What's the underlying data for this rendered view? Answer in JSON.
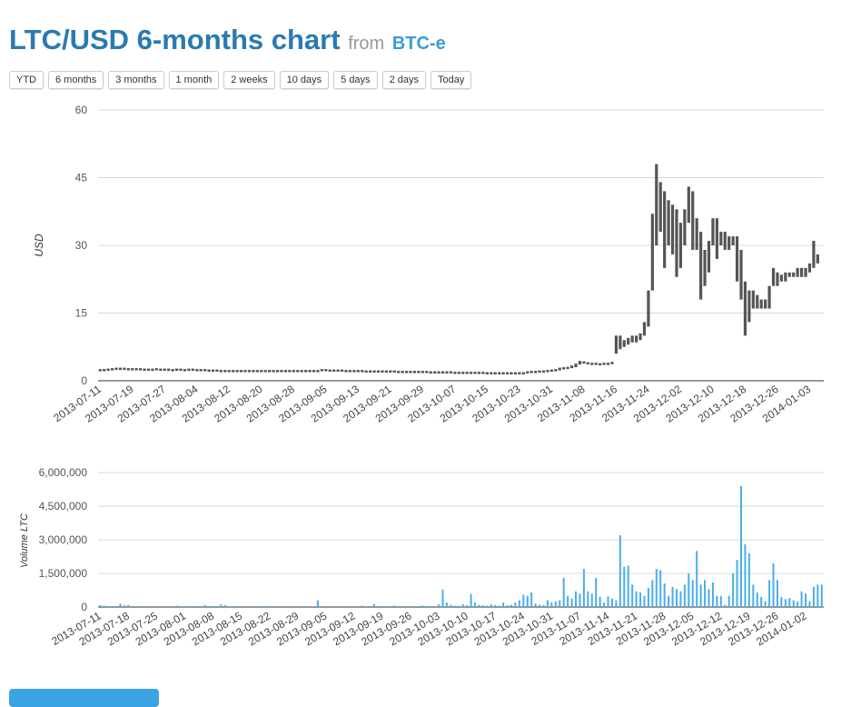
{
  "header": {
    "title": "LTC/USD 6-months chart",
    "from": "from",
    "source": "BTC-e"
  },
  "range_buttons": [
    "YTD",
    "6 months",
    "3 months",
    "1 month",
    "2 weeks",
    "10 days",
    "5 days",
    "2 days",
    "Today"
  ],
  "chart_data": [
    {
      "type": "candlestick",
      "title": "LTC/USD",
      "ylabel": "USD",
      "ylim": [
        0,
        60
      ],
      "yticks": [
        "0",
        "15",
        "30",
        "45",
        "60"
      ],
      "ytick_values": [
        0,
        15,
        30,
        45,
        60
      ],
      "start_date": "2013-07-11",
      "days": 180,
      "xtick_labels": [
        "2013-07-11",
        "2013-07-19",
        "2013-07-27",
        "2013-08-04",
        "2013-08-12",
        "2013-08-20",
        "2013-08-28",
        "2013-09-05",
        "2013-09-13",
        "2013-09-21",
        "2013-09-29",
        "2013-10-07",
        "2013-10-15",
        "2013-10-23",
        "2013-10-31",
        "2013-11-08",
        "2013-11-16",
        "2013-11-24",
        "2013-12-02",
        "2013-12-10",
        "2013-12-18",
        "2013-12-26",
        "2014-01-03"
      ],
      "xtick_step_days": 8,
      "low_high": [
        [
          2.2,
          2.6
        ],
        [
          2.3,
          2.6
        ],
        [
          2.3,
          2.7
        ],
        [
          2.4,
          2.8
        ],
        [
          2.4,
          2.9
        ],
        [
          2.5,
          2.9
        ],
        [
          2.5,
          2.9
        ],
        [
          2.4,
          2.8
        ],
        [
          2.4,
          2.8
        ],
        [
          2.5,
          2.8
        ],
        [
          2.4,
          2.8
        ],
        [
          2.4,
          2.7
        ],
        [
          2.4,
          2.7
        ],
        [
          2.4,
          2.7
        ],
        [
          2.4,
          2.8
        ],
        [
          2.4,
          2.7
        ],
        [
          2.4,
          2.7
        ],
        [
          2.3,
          2.7
        ],
        [
          2.3,
          2.6
        ],
        [
          2.3,
          2.7
        ],
        [
          2.3,
          2.7
        ],
        [
          2.3,
          2.6
        ],
        [
          2.3,
          2.7
        ],
        [
          2.4,
          2.7
        ],
        [
          2.3,
          2.6
        ],
        [
          2.3,
          2.6
        ],
        [
          2.2,
          2.6
        ],
        [
          2.2,
          2.5
        ],
        [
          2.2,
          2.5
        ],
        [
          2.2,
          2.5
        ],
        [
          2.1,
          2.4
        ],
        [
          2.1,
          2.4
        ],
        [
          2.1,
          2.4
        ],
        [
          2.1,
          2.4
        ],
        [
          2.1,
          2.4
        ],
        [
          2.1,
          2.4
        ],
        [
          2.1,
          2.4
        ],
        [
          2.1,
          2.4
        ],
        [
          2.1,
          2.4
        ],
        [
          2.1,
          2.4
        ],
        [
          2.1,
          2.4
        ],
        [
          2.1,
          2.4
        ],
        [
          2.1,
          2.4
        ],
        [
          2.1,
          2.4
        ],
        [
          2.1,
          2.4
        ],
        [
          2.1,
          2.4
        ],
        [
          2.1,
          2.4
        ],
        [
          2.1,
          2.4
        ],
        [
          2.1,
          2.4
        ],
        [
          2.1,
          2.4
        ],
        [
          2.1,
          2.4
        ],
        [
          2.1,
          2.4
        ],
        [
          2.1,
          2.4
        ],
        [
          2.1,
          2.4
        ],
        [
          2.1,
          2.4
        ],
        [
          2.2,
          2.6
        ],
        [
          2.2,
          2.6
        ],
        [
          2.2,
          2.5
        ],
        [
          2.2,
          2.5
        ],
        [
          2.2,
          2.5
        ],
        [
          2.1,
          2.5
        ],
        [
          2.1,
          2.4
        ],
        [
          2.1,
          2.4
        ],
        [
          2.1,
          2.4
        ],
        [
          2.1,
          2.4
        ],
        [
          2.1,
          2.4
        ],
        [
          2.0,
          2.3
        ],
        [
          2.0,
          2.3
        ],
        [
          2.0,
          2.3
        ],
        [
          2.0,
          2.3
        ],
        [
          2.0,
          2.3
        ],
        [
          2.0,
          2.3
        ],
        [
          2.0,
          2.3
        ],
        [
          2.0,
          2.3
        ],
        [
          1.9,
          2.2
        ],
        [
          1.9,
          2.2
        ],
        [
          1.9,
          2.2
        ],
        [
          1.9,
          2.2
        ],
        [
          1.9,
          2.2
        ],
        [
          1.9,
          2.2
        ],
        [
          1.9,
          2.2
        ],
        [
          1.9,
          2.2
        ],
        [
          1.8,
          2.1
        ],
        [
          1.8,
          2.1
        ],
        [
          1.8,
          2.1
        ],
        [
          1.8,
          2.1
        ],
        [
          1.8,
          2.1
        ],
        [
          1.8,
          2.1
        ],
        [
          1.8,
          2.0
        ],
        [
          1.8,
          2.0
        ],
        [
          1.7,
          2.0
        ],
        [
          1.7,
          2.0
        ],
        [
          1.7,
          2.0
        ],
        [
          1.7,
          2.0
        ],
        [
          1.7,
          2.0
        ],
        [
          1.7,
          2.0
        ],
        [
          1.7,
          1.9
        ],
        [
          1.7,
          1.9
        ],
        [
          1.6,
          1.9
        ],
        [
          1.6,
          1.9
        ],
        [
          1.6,
          1.9
        ],
        [
          1.6,
          1.9
        ],
        [
          1.6,
          1.9
        ],
        [
          1.6,
          1.9
        ],
        [
          1.6,
          1.9
        ],
        [
          1.6,
          1.9
        ],
        [
          1.8,
          2.1
        ],
        [
          1.8,
          2.2
        ],
        [
          1.9,
          2.2
        ],
        [
          1.9,
          2.3
        ],
        [
          2.0,
          2.3
        ],
        [
          2.0,
          2.4
        ],
        [
          2.1,
          2.5
        ],
        [
          2.2,
          2.6
        ],
        [
          2.3,
          2.9
        ],
        [
          2.5,
          3.0
        ],
        [
          2.6,
          3.1
        ],
        [
          2.8,
          3.4
        ],
        [
          3.0,
          3.8
        ],
        [
          3.6,
          4.4
        ],
        [
          3.8,
          4.3
        ],
        [
          3.7,
          4.1
        ],
        [
          3.6,
          4.0
        ],
        [
          3.6,
          4.0
        ],
        [
          3.6,
          3.9
        ],
        [
          3.6,
          4.0
        ],
        [
          3.7,
          4.0
        ],
        [
          3.8,
          4.2
        ],
        [
          6,
          10
        ],
        [
          7,
          10
        ],
        [
          7.5,
          9
        ],
        [
          8,
          9.5
        ],
        [
          8.5,
          10
        ],
        [
          8.5,
          10
        ],
        [
          9,
          10.5
        ],
        [
          10,
          13
        ],
        [
          12,
          20
        ],
        [
          20,
          37
        ],
        [
          30,
          48
        ],
        [
          33,
          44
        ],
        [
          25,
          42
        ],
        [
          30,
          40
        ],
        [
          28,
          39
        ],
        [
          23,
          38
        ],
        [
          25,
          35
        ],
        [
          30,
          38
        ],
        [
          35,
          43
        ],
        [
          29,
          42
        ],
        [
          29,
          36
        ],
        [
          18,
          33
        ],
        [
          21,
          29
        ],
        [
          24,
          31
        ],
        [
          30,
          36
        ],
        [
          27,
          36
        ],
        [
          30,
          33
        ],
        [
          29,
          33
        ],
        [
          29,
          32
        ],
        [
          30,
          32
        ],
        [
          22,
          32
        ],
        [
          18,
          29
        ],
        [
          10,
          22
        ],
        [
          13,
          20
        ],
        [
          16,
          20
        ],
        [
          16,
          19
        ],
        [
          16,
          18
        ],
        [
          16,
          18
        ],
        [
          16,
          21
        ],
        [
          21,
          25
        ],
        [
          21,
          24
        ],
        [
          22,
          23.5
        ],
        [
          22,
          24
        ],
        [
          23,
          24
        ],
        [
          23,
          24
        ],
        [
          23,
          25
        ],
        [
          23,
          25
        ],
        [
          23,
          25
        ],
        [
          24,
          26
        ],
        [
          25,
          31
        ],
        [
          26,
          28
        ]
      ]
    },
    {
      "type": "bar",
      "ylabel": "Volume LTC",
      "ylim": [
        0,
        6000000
      ],
      "yticks": [
        "0",
        "1,500,000",
        "3,000,000",
        "4,500,000",
        "6,000,000"
      ],
      "ytick_values": [
        0,
        1500000,
        3000000,
        4500000,
        6000000
      ],
      "start_date": "2013-07-11",
      "xtick_step_days": 7,
      "xtick_labels": [
        "2013-07-11",
        "2013-07-18",
        "2013-07-25",
        "2013-08-01",
        "2013-08-08",
        "2013-08-15",
        "2013-08-22",
        "2013-08-29",
        "2013-09-05",
        "2013-09-12",
        "2013-09-19",
        "2013-09-26",
        "2013-10-03",
        "2013-10-10",
        "2013-10-17",
        "2013-10-24",
        "2013-10-31",
        "2013-11-07",
        "2013-11-14",
        "2013-11-21",
        "2013-11-28",
        "2013-12-05",
        "2013-12-12",
        "2013-12-19",
        "2013-12-26",
        "2014-01-02"
      ],
      "values_thousands": [
        80,
        60,
        40,
        20,
        30,
        150,
        70,
        90,
        20,
        10,
        20,
        10,
        30,
        10,
        40,
        20,
        30,
        20,
        10,
        60,
        30,
        20,
        50,
        10,
        40,
        20,
        90,
        40,
        20,
        10,
        120,
        90,
        10,
        20,
        30,
        10,
        40,
        20,
        10,
        30,
        20,
        50,
        30,
        10,
        20,
        10,
        30,
        20,
        10,
        20,
        10,
        30,
        20,
        20,
        300,
        40,
        20,
        10,
        20,
        30,
        10,
        20,
        30,
        10,
        20,
        60,
        10,
        20,
        130,
        30,
        10,
        20,
        40,
        60,
        20,
        30,
        10,
        40,
        20,
        30,
        60,
        30,
        50,
        10,
        120,
        780,
        200,
        100,
        60,
        50,
        120,
        80,
        580,
        200,
        100,
        80,
        60,
        120,
        90,
        60,
        200,
        80,
        100,
        200,
        300,
        550,
        500,
        650,
        150,
        100,
        80,
        300,
        200,
        250,
        300,
        1300,
        500,
        380,
        700,
        600,
        1700,
        700,
        600,
        1300,
        450,
        200,
        480,
        380,
        300,
        3200,
        1800,
        1850,
        1000,
        700,
        650,
        500,
        850,
        1200,
        1700,
        1650,
        1050,
        500,
        900,
        800,
        700,
        1000,
        1500,
        1200,
        2500,
        1000,
        1200,
        800,
        1100,
        500,
        500,
        100,
        500,
        1500,
        2100,
        5400,
        2800,
        2400,
        1000,
        650,
        450,
        250,
        1200,
        1950,
        1200,
        450,
        350,
        400,
        300,
        250,
        700,
        600,
        250,
        900,
        1000,
        1000
      ]
    }
  ]
}
